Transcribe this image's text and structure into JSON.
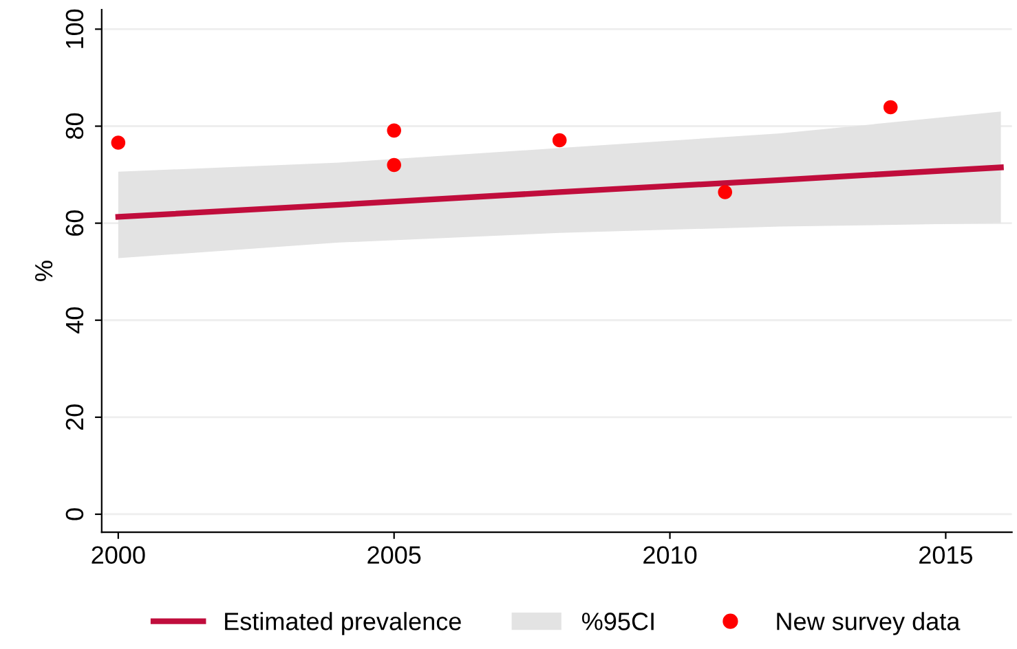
{
  "chart_data": {
    "type": "line",
    "ylabel": "%",
    "xlim": [
      1999.7,
      2016.2
    ],
    "xticks": [
      2000,
      2005,
      2010,
      2015
    ],
    "ylim": [
      -3.7,
      104
    ],
    "yticks": [
      0,
      20,
      40,
      60,
      80,
      100
    ],
    "grid": "y",
    "legend": "bottom",
    "series": [
      {
        "name": "Estimated prevalence",
        "color": "#c00d3c",
        "x": [
          2000,
          2004,
          2008,
          2012,
          2016
        ],
        "values": [
          61.3,
          63.8,
          66.4,
          68.9,
          71.5
        ],
        "lower": [
          52.8,
          56,
          58,
          59.3,
          60
        ],
        "upper": [
          70.6,
          72.5,
          75.5,
          78.5,
          83
        ]
      },
      {
        "type": "area",
        "name": "%95CI",
        "color": "#e3e3e3"
      },
      {
        "type": "scatter",
        "name": "New survey data",
        "color": "#ff0000",
        "marker": "circle",
        "x": [
          2000,
          2005,
          2005,
          2008,
          2011,
          2014
        ],
        "values": [
          76.6,
          79.1,
          72,
          77.1,
          66.4,
          83.9
        ]
      }
    ]
  }
}
